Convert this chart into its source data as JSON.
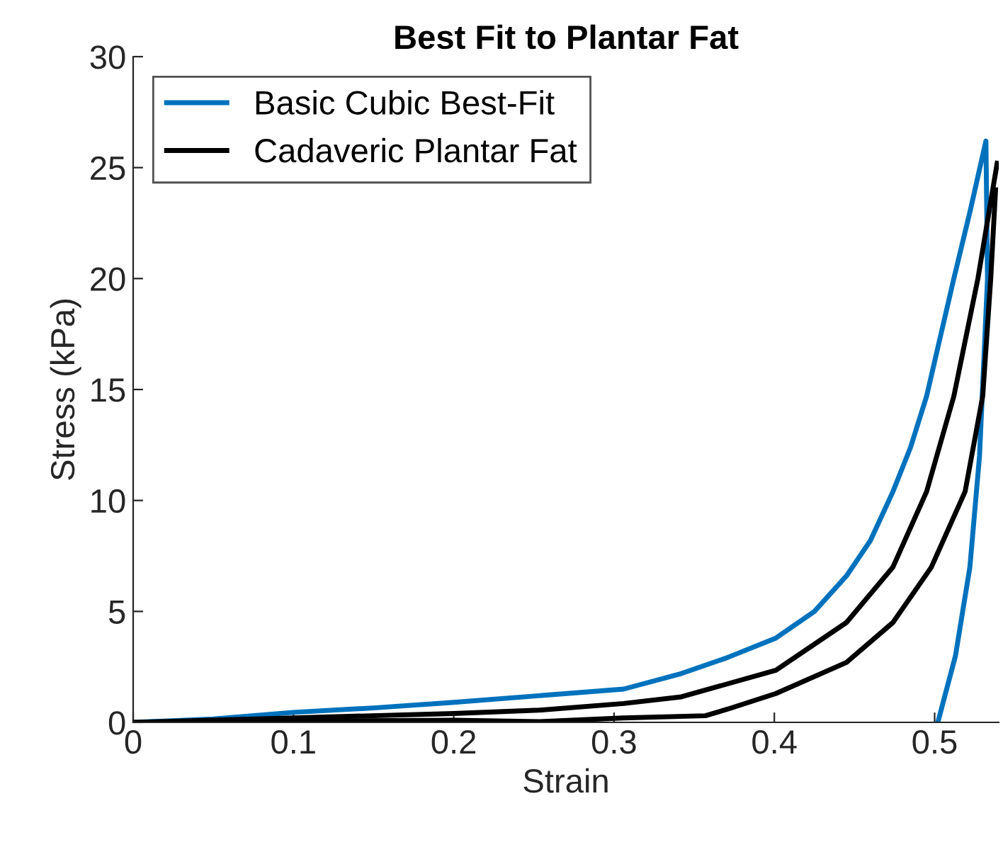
{
  "chart_data": {
    "type": "line",
    "title": "Best Fit to Plantar Fat",
    "xlabel": "Strain",
    "ylabel": "Stress (kPa)",
    "xlim": [
      0,
      0.54
    ],
    "xticks": [
      0,
      0.1,
      0.2,
      0.3,
      0.4,
      0.5
    ],
    "ylim": [
      0,
      30
    ],
    "yticks": [
      0,
      5,
      10,
      15,
      20,
      25,
      30
    ],
    "grid": false,
    "legend": "top left",
    "marker": "none",
    "line_style": "solid",
    "series": [
      {
        "name": "Basic Cubic Best-Fit",
        "color": "#0072bd",
        "x": [
          0,
          0.05,
          0.1,
          0.15,
          0.2,
          0.253,
          0.306,
          0.342,
          0.37,
          0.401,
          0.425,
          0.445,
          0.46,
          0.474,
          0.485,
          0.495,
          0.503,
          0.512,
          0.522,
          0.532,
          0.533,
          0.528,
          0.522,
          0.513,
          0.502
        ],
        "values": [
          0,
          0.15,
          0.45,
          0.65,
          0.9,
          1.2,
          1.5,
          2.2,
          2.9,
          3.8,
          5.0,
          6.6,
          8.2,
          10.4,
          12.4,
          14.7,
          17.2,
          20,
          23,
          26.2,
          20,
          12,
          7,
          3,
          0
        ]
      },
      {
        "name": "Cadaveric Plantar Fat",
        "color": "#000000",
        "x": [
          0,
          0.1,
          0.2,
          0.253,
          0.306,
          0.342,
          0.401,
          0.445,
          0.474,
          0.495,
          0.512,
          0.527,
          0.539
        ],
        "values": [
          0,
          0.2,
          0.4,
          0.55,
          0.85,
          1.15,
          2.35,
          4.5,
          7.0,
          10.4,
          14.7,
          20,
          25.2
        ]
      },
      {
        "color": "#000000",
        "x": [
          0.05,
          0.1,
          0.2,
          0.253,
          0.306,
          0.357,
          0.371,
          0.401,
          0.445,
          0.474,
          0.498,
          0.519,
          0.53,
          0.535,
          0.538
        ],
        "values": [
          0.02,
          0.05,
          0.1,
          0.03,
          0.2,
          0.3,
          0.6,
          1.3,
          2.7,
          4.5,
          7.0,
          10.4,
          14.7,
          20,
          24
        ]
      }
    ]
  }
}
